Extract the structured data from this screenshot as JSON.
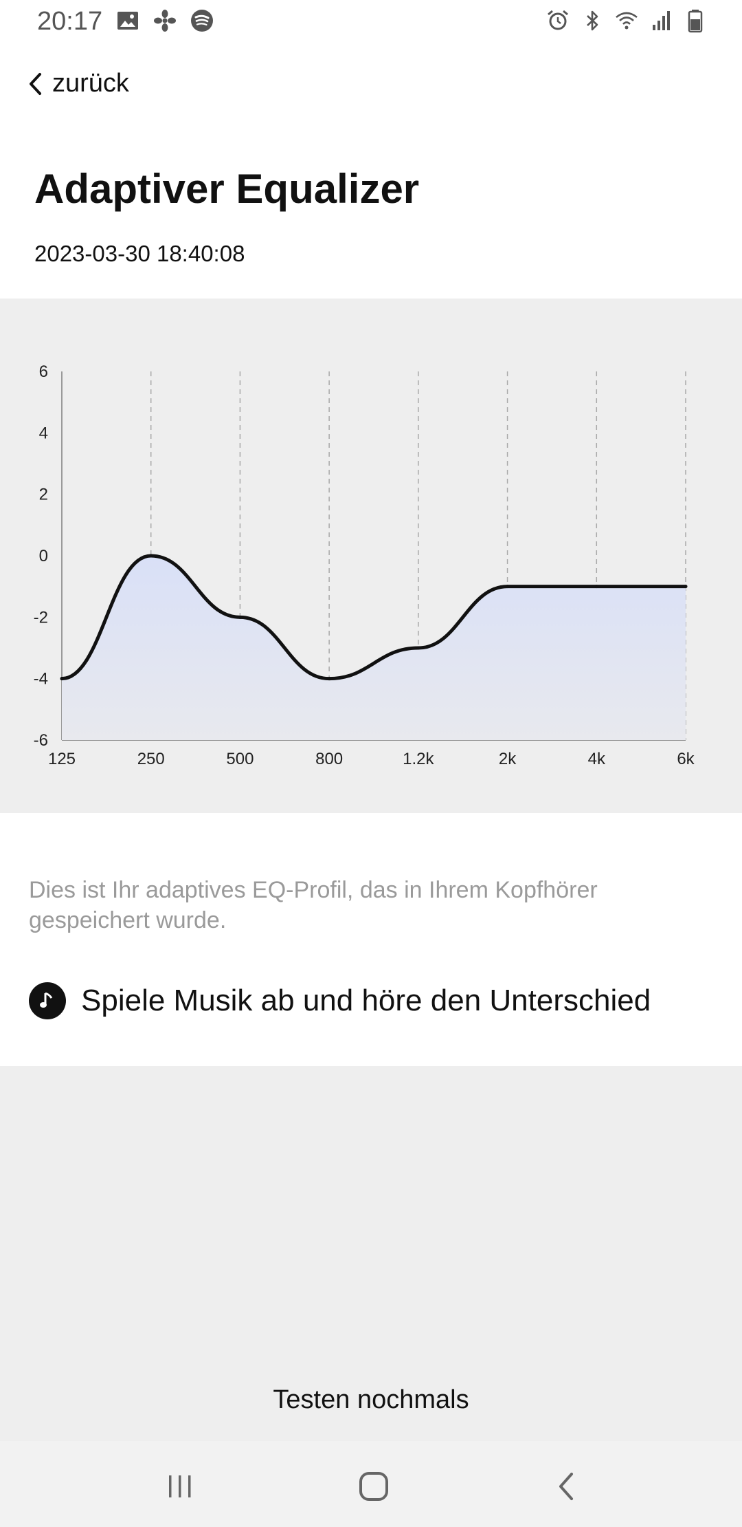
{
  "status_bar": {
    "time": "20:17",
    "left_icons": [
      "image-icon",
      "fan-icon",
      "spotify-icon"
    ],
    "right_icons": [
      "alarm-icon",
      "bluetooth-icon",
      "wifi-icon",
      "signal-icon",
      "battery-icon"
    ]
  },
  "header": {
    "back_label": "zurück",
    "title": "Adaptiver Equalizer",
    "timestamp": "2023-03-30 18:40:08"
  },
  "chart_data": {
    "type": "area",
    "categories": [
      "125",
      "250",
      "500",
      "800",
      "1.2k",
      "2k",
      "4k",
      "6k"
    ],
    "values": [
      -4,
      0,
      -2,
      -4,
      -3,
      -1,
      -1,
      -1
    ],
    "ylim": [
      -6,
      6
    ],
    "y_ticks": [
      "6",
      "4",
      "2",
      "0",
      "-2",
      "-4",
      "-6"
    ],
    "grid": "vertical-dashed",
    "line_color": "#111111",
    "fill_color": "#dde3f5"
  },
  "main": {
    "description": "Dies ist Ihr adaptives EQ-Profil, das in Ihrem Kopfhörer gespeichert wurde.",
    "music_label": "Spiele Musik ab und höre den Unterschied",
    "music_icon": "music-note-icon",
    "retest_label": "Testen nochmals"
  },
  "nav_bar": {
    "icons": [
      "recent-apps-icon",
      "home-icon",
      "back-icon"
    ]
  },
  "colors": {
    "panel_background": "#eeeeee",
    "description_text": "#9a9a9a"
  }
}
